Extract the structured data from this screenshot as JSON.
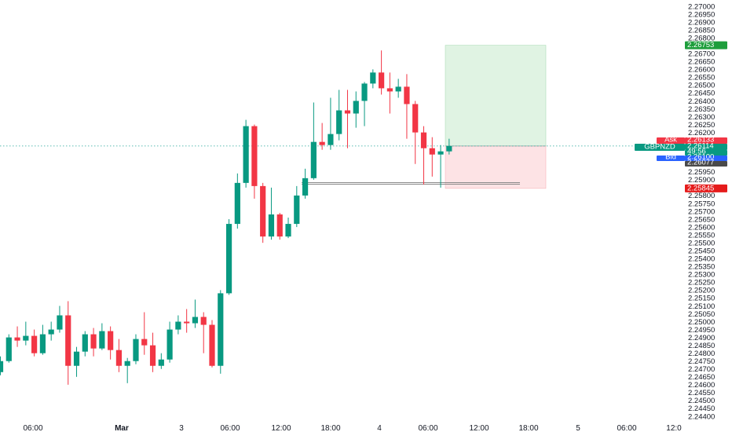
{
  "chart_data": {
    "type": "candlestick",
    "symbol": "GBPNZD",
    "colors": {
      "up": "#089981",
      "down": "#f23645",
      "target_zone": "#e0f3e3",
      "stop_zone": "#fde3e5",
      "target_badge": "#1e9e3c",
      "stop_badge": "#e51b1b",
      "bid_badge": "#2962ff",
      "crosshair": "#26a69a"
    },
    "y_axis": {
      "ticks": [
        "2.27000",
        "2.26950",
        "2.26900",
        "2.26850",
        "2.26800",
        "2.26700",
        "2.26650",
        "2.26600",
        "2.26550",
        "2.26500",
        "2.26450",
        "2.26400",
        "2.26350",
        "2.26300",
        "2.26250",
        "2.26200",
        "2.26000",
        "2.25950",
        "2.25900",
        "2.25800",
        "2.25750",
        "2.25700",
        "2.25650",
        "2.25600",
        "2.25550",
        "2.25500",
        "2.25450",
        "2.25400",
        "2.25350",
        "2.25300",
        "2.25250",
        "2.25200",
        "2.25150",
        "2.25100",
        "2.25050",
        "2.25000",
        "2.24950",
        "2.24900",
        "2.24850",
        "2.24800",
        "2.24750",
        "2.24700",
        "2.24650",
        "2.24600",
        "2.24550",
        "2.24500",
        "2.24450",
        "2.24400"
      ],
      "range": [
        2.24375,
        2.27025
      ]
    },
    "x_axis": {
      "labels": [
        "06:00",
        "Mar",
        "3",
        "06:00",
        "12:00",
        "18:00",
        "4",
        "06:00",
        "12:00",
        "18:00",
        "5",
        "06:00",
        "12:0"
      ]
    },
    "candles": [
      [
        2.2468,
        2.2475,
        2.2466,
        2.2478
      ],
      [
        2.2475,
        2.249,
        2.2474,
        2.2492
      ],
      [
        2.249,
        2.2488,
        2.2484,
        2.2497
      ],
      [
        2.2488,
        2.2491,
        2.2485,
        2.25
      ],
      [
        2.2491,
        2.248,
        2.2478,
        2.2495
      ],
      [
        2.248,
        2.2492,
        2.2479,
        2.2498
      ],
      [
        2.2492,
        2.2495,
        2.2488,
        2.25
      ],
      [
        2.2495,
        2.2504,
        2.2493,
        2.251
      ],
      [
        2.2504,
        2.2472,
        2.246,
        2.2513
      ],
      [
        2.2472,
        2.2481,
        2.2465,
        2.2484
      ],
      [
        2.2481,
        2.2492,
        2.2478,
        2.2494
      ],
      [
        2.2492,
        2.2483,
        2.2478,
        2.2496
      ],
      [
        2.2483,
        2.2494,
        2.2482,
        2.2499
      ],
      [
        2.2494,
        2.2482,
        2.2476,
        2.2497
      ],
      [
        2.2482,
        2.2472,
        2.2468,
        2.2489
      ],
      [
        2.2472,
        2.2475,
        2.2461,
        2.2477
      ],
      [
        2.2475,
        2.2489,
        2.2473,
        2.2492
      ],
      [
        2.2489,
        2.2485,
        2.2479,
        2.2506
      ],
      [
        2.2485,
        2.2472,
        2.2468,
        2.2493
      ],
      [
        2.2472,
        2.2476,
        2.247,
        2.248
      ],
      [
        2.2476,
        2.2495,
        2.2474,
        2.25
      ],
      [
        2.2495,
        2.25,
        2.2492,
        2.2504
      ],
      [
        2.25,
        2.2499,
        2.2493,
        2.2508
      ],
      [
        2.2499,
        2.2503,
        2.2496,
        2.2514
      ],
      [
        2.2503,
        2.2498,
        2.248,
        2.2506
      ],
      [
        2.2498,
        2.2472,
        2.2471,
        2.2501
      ],
      [
        2.2472,
        2.2518,
        2.2467,
        2.252
      ],
      [
        2.2518,
        2.2562,
        2.2517,
        2.2565
      ],
      [
        2.2562,
        2.2588,
        2.2559,
        2.2594
      ],
      [
        2.2588,
        2.2624,
        2.2585,
        2.2628
      ],
      [
        2.2624,
        2.2586,
        2.2578,
        2.2625
      ],
      [
        2.2586,
        2.2554,
        2.255,
        2.2588
      ],
      [
        2.2554,
        2.2568,
        2.2552,
        2.2585
      ],
      [
        2.2568,
        2.2554,
        2.2552,
        2.2569
      ],
      [
        2.2554,
        2.2562,
        2.2553,
        2.2566
      ],
      [
        2.2562,
        2.258,
        2.256,
        2.2586
      ],
      [
        2.258,
        2.2591,
        2.2578,
        2.2597
      ],
      [
        2.2591,
        2.2614,
        2.259,
        2.2639
      ],
      [
        2.2614,
        2.2612,
        2.2609,
        2.2626
      ],
      [
        2.2612,
        2.2619,
        2.2609,
        2.2642
      ],
      [
        2.2619,
        2.2634,
        2.2615,
        2.2647
      ],
      [
        2.2634,
        2.2632,
        2.261,
        2.2647
      ],
      [
        2.2632,
        2.264,
        2.2623,
        2.2646
      ],
      [
        2.264,
        2.2651,
        2.2624,
        2.2652
      ],
      [
        2.2651,
        2.2658,
        2.2648,
        2.266
      ],
      [
        2.2658,
        2.2648,
        2.2644,
        2.2672
      ],
      [
        2.2648,
        2.2646,
        2.2632,
        2.2658
      ],
      [
        2.2646,
        2.2649,
        2.2642,
        2.2654
      ],
      [
        2.2649,
        2.2638,
        2.2616,
        2.2657
      ],
      [
        2.2638,
        2.262,
        2.26,
        2.264
      ],
      [
        2.262,
        2.261,
        2.2587,
        2.2624
      ],
      [
        2.261,
        2.2606,
        2.2592,
        2.2617
      ],
      [
        2.2606,
        2.2608,
        2.2585,
        2.2612
      ],
      [
        2.2608,
        2.26114,
        2.2606,
        2.2616
      ]
    ],
    "position": {
      "target_price": 2.26753,
      "entry_price": 2.26114,
      "stop_price": 2.25845
    },
    "support_lines": [
      2.25882,
      2.25872
    ],
    "price_badges": {
      "target": "2.26753",
      "ask_label": "Ask",
      "ask_value": "2.26133",
      "symbol_label": "GBPNZD",
      "last_value": "2.26114",
      "countdown": "49:56",
      "bid_label": "Bid",
      "bid_value": "2.26100",
      "prev_value": "2.26077",
      "stop": "2.25845"
    }
  }
}
